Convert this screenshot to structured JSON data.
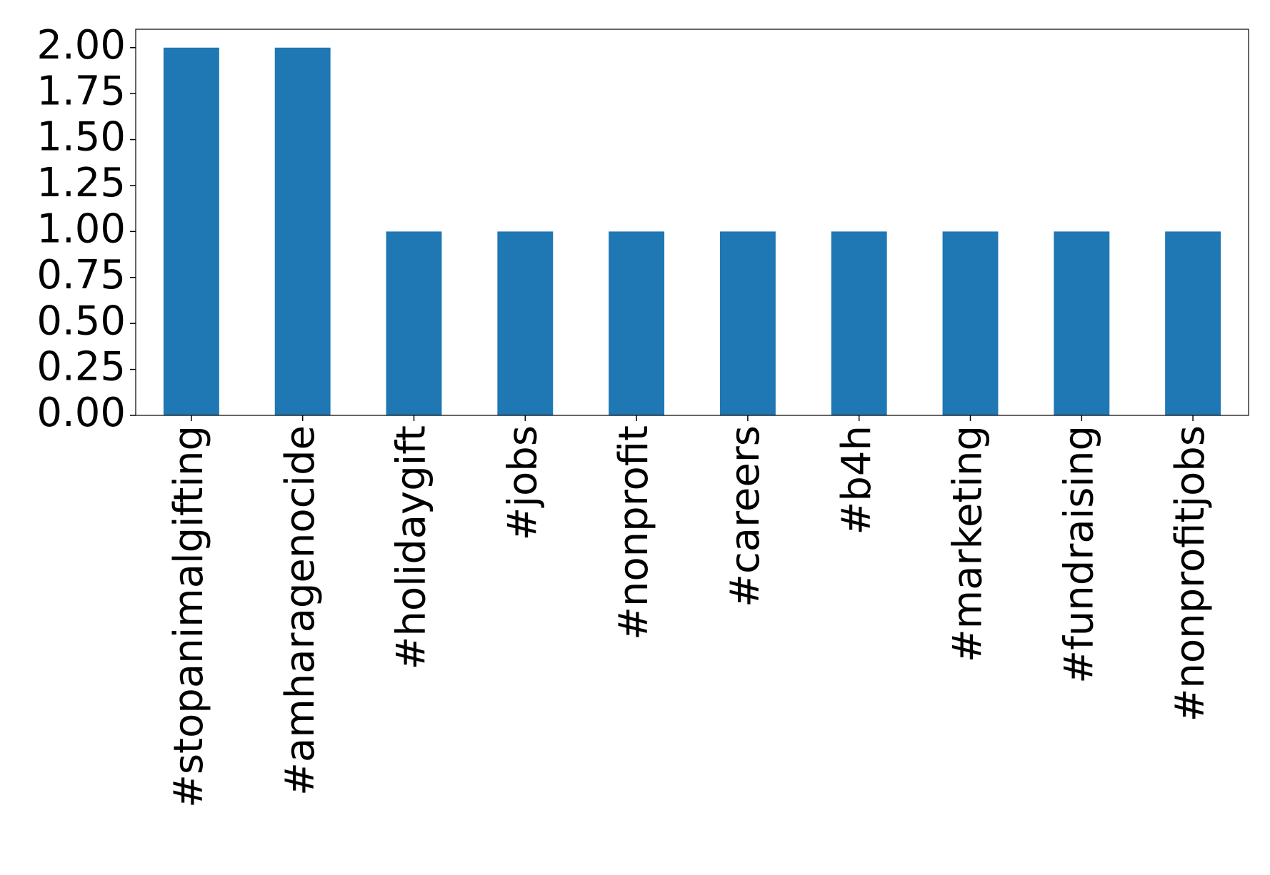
{
  "chart_data": {
    "type": "bar",
    "categories": [
      "#stopanimalgifting",
      "#amharagenocide",
      "#holidaygift",
      "#jobs",
      "#nonprofit",
      "#careers",
      "#b4h",
      "#marketing",
      "#fundraising",
      "#nonprofitjobs"
    ],
    "values": [
      2,
      2,
      1,
      1,
      1,
      1,
      1,
      1,
      1,
      1
    ],
    "color": "#1f77b4",
    "ylim": [
      0,
      2.1
    ],
    "yticks": [
      {
        "value": 0,
        "label": "0.00"
      },
      {
        "value": 0.25,
        "label": "0.25"
      },
      {
        "value": 0.5,
        "label": "0.50"
      },
      {
        "value": 0.75,
        "label": "0.75"
      },
      {
        "value": 1,
        "label": "1.00"
      },
      {
        "value": 1.25,
        "label": "1.25"
      },
      {
        "value": 1.5,
        "label": "1.50"
      },
      {
        "value": 1.75,
        "label": "1.75"
      },
      {
        "value": 2,
        "label": "2.00"
      }
    ],
    "grid": false
  }
}
